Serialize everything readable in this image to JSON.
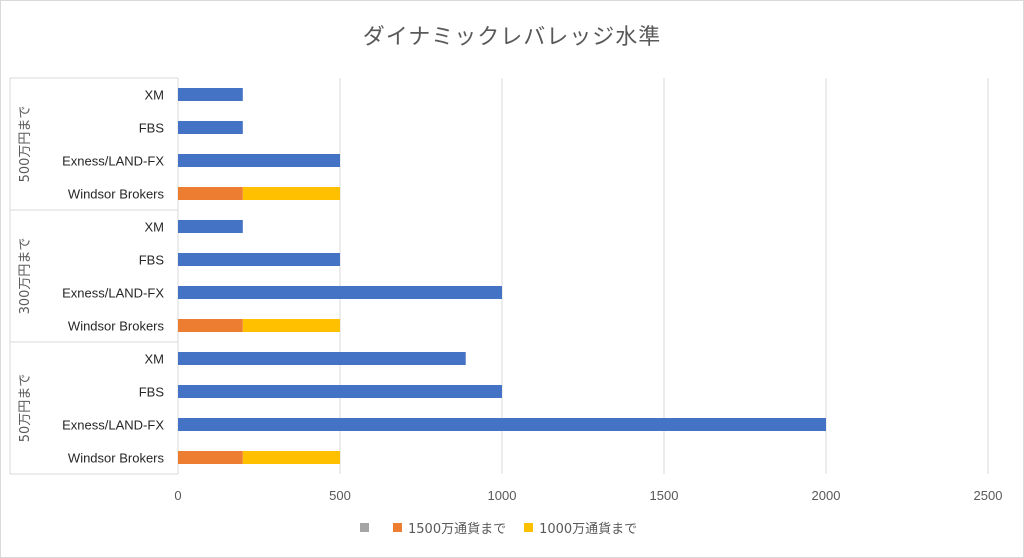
{
  "chart_data": {
    "type": "bar",
    "orientation": "horizontal",
    "stacked": true,
    "title": "ダイナミックレバレッジ水準",
    "groups": [
      {
        "label": "500万円まで",
        "categories": [
          "XM",
          "FBS",
          "Exness/LAND-FX",
          "Windsor Brokers"
        ]
      },
      {
        "label": "300万円まで",
        "categories": [
          "XM",
          "FBS",
          "Exness/LAND-FX",
          "Windsor Brokers"
        ]
      },
      {
        "label": "50万円まで",
        "categories": [
          "XM",
          "FBS",
          "Exness/LAND-FX",
          "Windsor Brokers"
        ]
      }
    ],
    "series": [
      {
        "name": "",
        "color": "#4472c4",
        "values": [
          [
            200,
            200,
            500,
            0
          ],
          [
            200,
            500,
            1000,
            0
          ],
          [
            888,
            1000,
            2000,
            0
          ]
        ]
      },
      {
        "name": "1500万通貨まで",
        "color": "#ed7d31",
        "values": [
          [
            0,
            0,
            0,
            200
          ],
          [
            0,
            0,
            0,
            200
          ],
          [
            0,
            0,
            0,
            200
          ]
        ]
      },
      {
        "name": "1000万通貨まで",
        "color": "#ffc000",
        "values": [
          [
            0,
            0,
            0,
            300
          ],
          [
            0,
            0,
            0,
            300
          ],
          [
            0,
            0,
            0,
            300
          ]
        ]
      }
    ],
    "xlim": [
      0,
      2500
    ],
    "xticks": [
      "0",
      "500",
      "1000",
      "1500",
      "2000",
      "2500"
    ],
    "grid": true,
    "legend_position": "bottom",
    "legend_empty_marker_color": "#a5a5a5"
  }
}
